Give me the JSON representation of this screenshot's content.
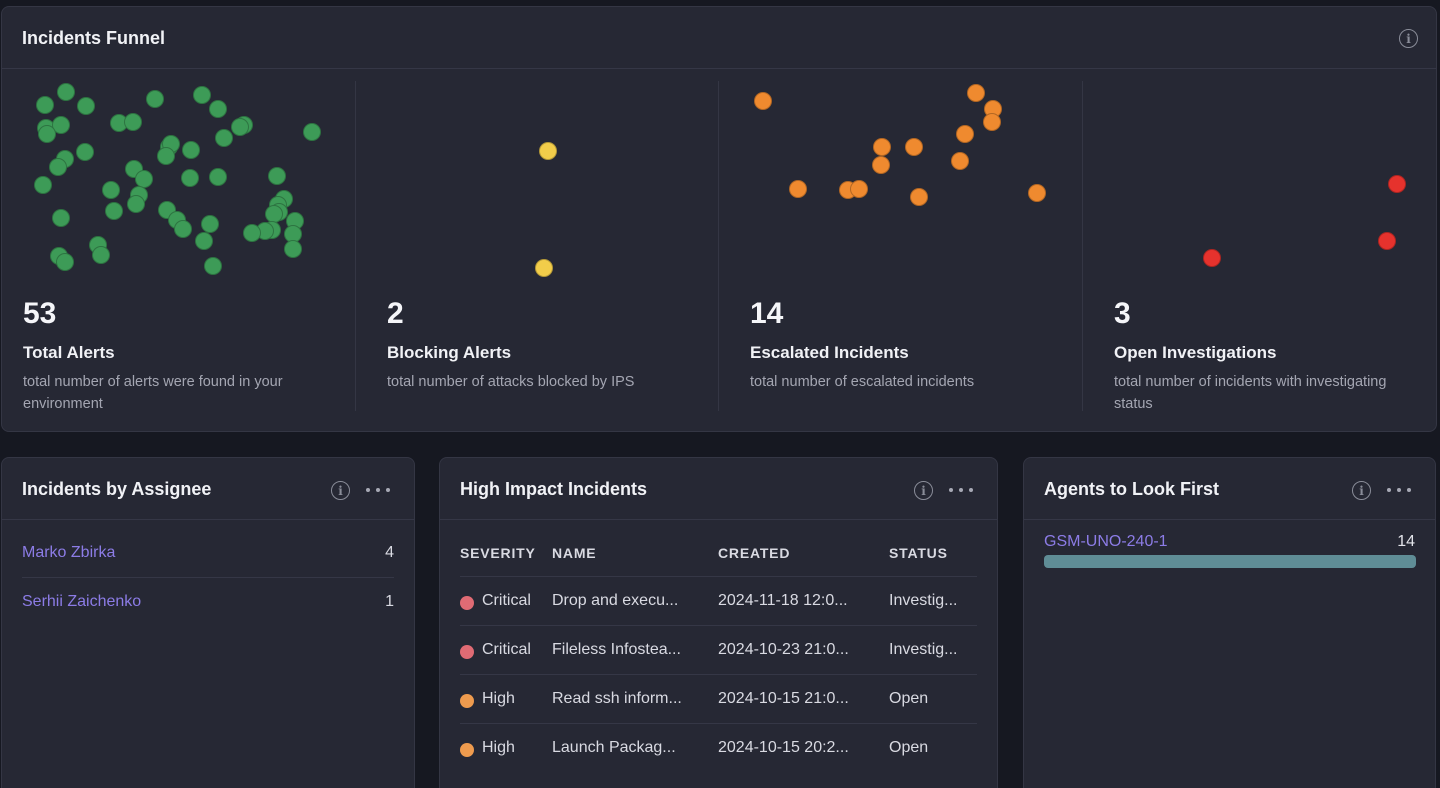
{
  "colors": {
    "alerts": "#3d9b57",
    "blocking": "#f2cd4a",
    "escalated": "#ef8a2f",
    "investigations": "#e6322d",
    "critical": "#e06b74",
    "high": "#ee9b4e",
    "link": "#8c7ce6",
    "agent_bar": "#5f8d96"
  },
  "funnel": {
    "title": "Incidents Funnel",
    "metrics": [
      {
        "value": "53",
        "label": "Total Alerts",
        "description": "total number of alerts were found in your environment",
        "dot_count": 53,
        "color_key": "alerts"
      },
      {
        "value": "2",
        "label": "Blocking Alerts",
        "description": "total number of attacks blocked by IPS",
        "dot_count": 2,
        "color_key": "blocking"
      },
      {
        "value": "14",
        "label": "Escalated Incidents",
        "description": "total number of escalated incidents",
        "dot_count": 14,
        "color_key": "escalated"
      },
      {
        "value": "3",
        "label": "Open Investigations",
        "description": "total number of incidents with investigating status",
        "dot_count": 3,
        "color_key": "investigations"
      }
    ]
  },
  "assignee": {
    "title": "Incidents by Assignee",
    "rows": [
      {
        "name": "Marko Zbirka",
        "count": "4"
      },
      {
        "name": "Serhii Zaichenko",
        "count": "1"
      }
    ]
  },
  "high_impact": {
    "title": "High Impact Incidents",
    "columns": [
      "SEVERITY",
      "NAME",
      "CREATED",
      "STATUS"
    ],
    "rows": [
      {
        "severity": "Critical",
        "severity_color": "critical",
        "name": "Drop and execu...",
        "created": "2024-11-18 12:0...",
        "status": "Investig..."
      },
      {
        "severity": "Critical",
        "severity_color": "critical",
        "name": "Fileless Infostea...",
        "created": "2024-10-23 21:0...",
        "status": "Investig..."
      },
      {
        "severity": "High",
        "severity_color": "high",
        "name": "Read ssh inform...",
        "created": "2024-10-15 21:0...",
        "status": "Open"
      },
      {
        "severity": "High",
        "severity_color": "high",
        "name": "Launch Packag...",
        "created": "2024-10-15 20:2...",
        "status": "Open"
      }
    ]
  },
  "agents": {
    "title": "Agents to Look First",
    "items": [
      {
        "name": "GSM-UNO-240-1",
        "count": "14",
        "fill_fraction": 1.0
      }
    ]
  }
}
